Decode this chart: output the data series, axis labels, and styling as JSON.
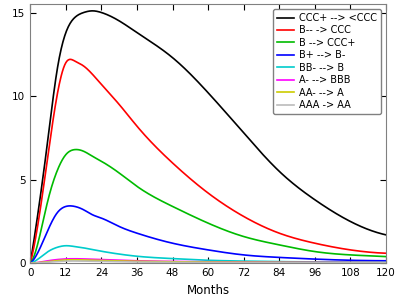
{
  "xlabel": "Months",
  "xlim": [
    0,
    120
  ],
  "ylim": [
    0,
    15.5
  ],
  "xticks": [
    0,
    12,
    24,
    36,
    48,
    60,
    72,
    84,
    96,
    108,
    120
  ],
  "yticks": [
    0,
    5,
    10,
    15
  ],
  "series": [
    {
      "label": "CCC+ --> <CCC",
      "color": "#000000",
      "lw": 1.2,
      "points": [
        [
          0,
          0
        ],
        [
          3,
          3.5
        ],
        [
          6,
          7.5
        ],
        [
          9,
          11.5
        ],
        [
          12,
          13.8
        ],
        [
          15,
          14.7
        ],
        [
          18,
          15.0
        ],
        [
          21,
          15.1
        ],
        [
          24,
          15.0
        ],
        [
          30,
          14.5
        ],
        [
          36,
          13.8
        ],
        [
          48,
          12.3
        ],
        [
          60,
          10.2
        ],
        [
          72,
          7.8
        ],
        [
          84,
          5.5
        ],
        [
          96,
          3.8
        ],
        [
          108,
          2.5
        ],
        [
          120,
          1.7
        ]
      ]
    },
    {
      "label": "B-- -> CCC",
      "color": "#FF0000",
      "lw": 1.2,
      "points": [
        [
          0,
          0
        ],
        [
          3,
          2.8
        ],
        [
          6,
          6.5
        ],
        [
          9,
          10.0
        ],
        [
          12,
          12.0
        ],
        [
          15,
          12.1
        ],
        [
          18,
          11.8
        ],
        [
          21,
          11.3
        ],
        [
          24,
          10.7
        ],
        [
          30,
          9.5
        ],
        [
          36,
          8.2
        ],
        [
          48,
          6.0
        ],
        [
          60,
          4.2
        ],
        [
          72,
          2.8
        ],
        [
          84,
          1.8
        ],
        [
          96,
          1.2
        ],
        [
          108,
          0.8
        ],
        [
          120,
          0.6
        ]
      ]
    },
    {
      "label": "B --> CCC+",
      "color": "#00BB00",
      "lw": 1.2,
      "points": [
        [
          0,
          0
        ],
        [
          3,
          1.5
        ],
        [
          6,
          3.8
        ],
        [
          9,
          5.5
        ],
        [
          12,
          6.5
        ],
        [
          15,
          6.8
        ],
        [
          18,
          6.7
        ],
        [
          21,
          6.4
        ],
        [
          24,
          6.1
        ],
        [
          30,
          5.4
        ],
        [
          36,
          4.6
        ],
        [
          48,
          3.4
        ],
        [
          60,
          2.4
        ],
        [
          72,
          1.6
        ],
        [
          84,
          1.1
        ],
        [
          96,
          0.7
        ],
        [
          108,
          0.5
        ],
        [
          120,
          0.4
        ]
      ]
    },
    {
      "label": "B+ --> B-",
      "color": "#0000FF",
      "lw": 1.2,
      "points": [
        [
          0,
          0
        ],
        [
          3,
          0.8
        ],
        [
          6,
          2.0
        ],
        [
          9,
          3.0
        ],
        [
          12,
          3.4
        ],
        [
          15,
          3.4
        ],
        [
          18,
          3.2
        ],
        [
          21,
          2.9
        ],
        [
          24,
          2.7
        ],
        [
          30,
          2.2
        ],
        [
          36,
          1.8
        ],
        [
          48,
          1.2
        ],
        [
          60,
          0.8
        ],
        [
          72,
          0.5
        ],
        [
          84,
          0.35
        ],
        [
          96,
          0.25
        ],
        [
          108,
          0.18
        ],
        [
          120,
          0.15
        ]
      ]
    },
    {
      "label": "BB- --> B",
      "color": "#00CCCC",
      "lw": 1.2,
      "points": [
        [
          0,
          0
        ],
        [
          3,
          0.3
        ],
        [
          6,
          0.7
        ],
        [
          9,
          0.95
        ],
        [
          12,
          1.05
        ],
        [
          15,
          1.0
        ],
        [
          18,
          0.92
        ],
        [
          21,
          0.82
        ],
        [
          24,
          0.72
        ],
        [
          30,
          0.55
        ],
        [
          36,
          0.42
        ],
        [
          48,
          0.28
        ],
        [
          60,
          0.18
        ],
        [
          72,
          0.13
        ],
        [
          84,
          0.1
        ],
        [
          96,
          0.08
        ],
        [
          108,
          0.07
        ],
        [
          120,
          0.06
        ]
      ]
    },
    {
      "label": "A- --> BBB",
      "color": "#FF00FF",
      "lw": 1.2,
      "points": [
        [
          0,
          0
        ],
        [
          3,
          0.06
        ],
        [
          6,
          0.15
        ],
        [
          9,
          0.22
        ],
        [
          12,
          0.26
        ],
        [
          15,
          0.27
        ],
        [
          18,
          0.26
        ],
        [
          21,
          0.24
        ],
        [
          24,
          0.22
        ],
        [
          30,
          0.18
        ],
        [
          36,
          0.15
        ],
        [
          48,
          0.11
        ],
        [
          60,
          0.09
        ],
        [
          72,
          0.07
        ],
        [
          84,
          0.06
        ],
        [
          96,
          0.05
        ],
        [
          108,
          0.05
        ],
        [
          120,
          0.04
        ]
      ]
    },
    {
      "label": "AA- --> A",
      "color": "#CCCC00",
      "lw": 1.2,
      "points": [
        [
          0,
          0
        ],
        [
          3,
          0.04
        ],
        [
          6,
          0.1
        ],
        [
          9,
          0.16
        ],
        [
          12,
          0.2
        ],
        [
          15,
          0.21
        ],
        [
          18,
          0.2
        ],
        [
          21,
          0.19
        ],
        [
          24,
          0.17
        ],
        [
          30,
          0.14
        ],
        [
          36,
          0.12
        ],
        [
          48,
          0.09
        ],
        [
          60,
          0.07
        ],
        [
          72,
          0.06
        ],
        [
          84,
          0.05
        ],
        [
          96,
          0.04
        ],
        [
          108,
          0.04
        ],
        [
          120,
          0.03
        ]
      ]
    },
    {
      "label": "AAA -> AA",
      "color": "#BBBBBB",
      "lw": 1.2,
      "points": [
        [
          0,
          0
        ],
        [
          3,
          0.025
        ],
        [
          6,
          0.065
        ],
        [
          9,
          0.1
        ],
        [
          12,
          0.13
        ],
        [
          15,
          0.135
        ],
        [
          18,
          0.13
        ],
        [
          21,
          0.12
        ],
        [
          24,
          0.11
        ],
        [
          30,
          0.09
        ],
        [
          36,
          0.075
        ],
        [
          48,
          0.058
        ],
        [
          60,
          0.046
        ],
        [
          72,
          0.038
        ],
        [
          84,
          0.032
        ],
        [
          96,
          0.028
        ],
        [
          108,
          0.025
        ],
        [
          120,
          0.022
        ]
      ]
    }
  ],
  "legend_fontsize": 7.0,
  "axis_fontsize": 8.5,
  "tick_fontsize": 7.5
}
